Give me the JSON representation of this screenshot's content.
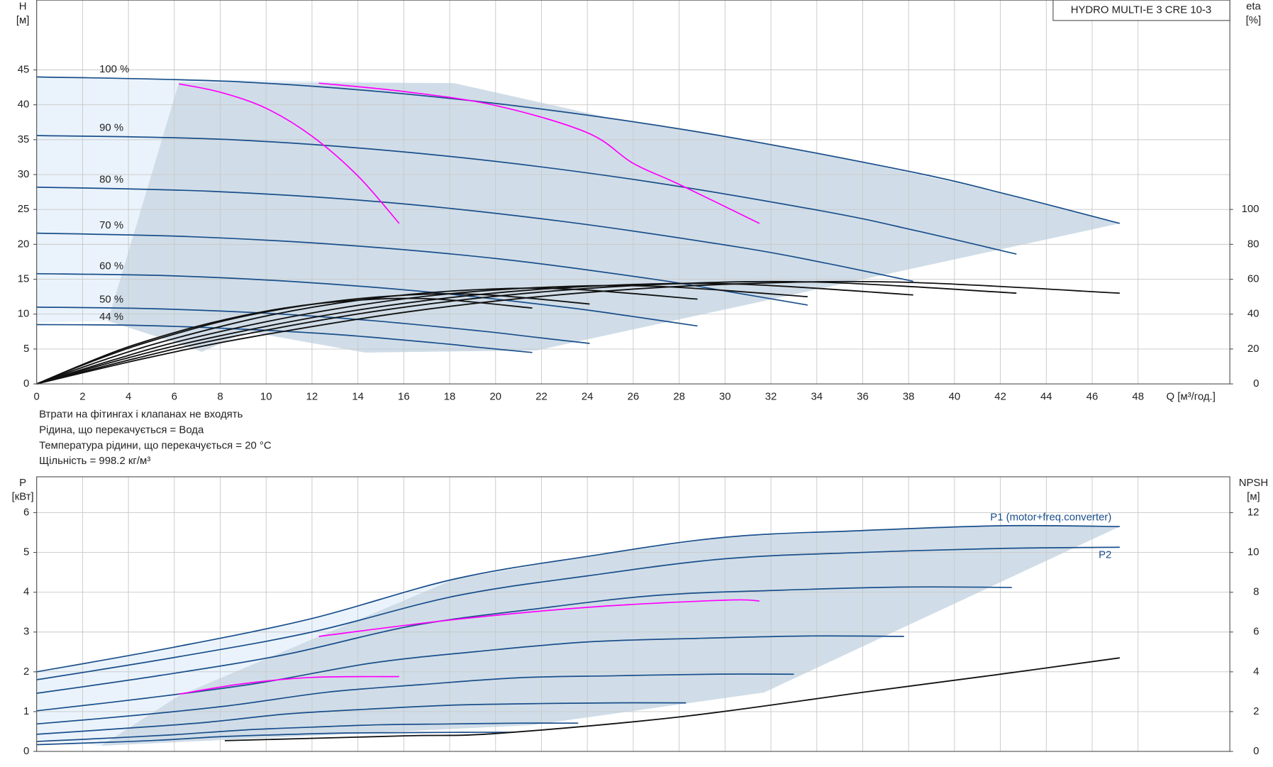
{
  "chart_data": [
    {
      "type": "line",
      "title": "HYDRO MULTI-E 3 CRE 10-3",
      "ylabel": "H",
      "yunit": "[м]",
      "y2label": "eta",
      "y2unit": "[%]",
      "xlabel": "Q [м³/год.]",
      "notes": [
        "Втрати на фітингах і клапанах не входять",
        "Рідина, що перекачується = Вода",
        "Температура рідини, що перекачується = 20 °C",
        "Щільність = 998.2 кг/м³"
      ],
      "xlim": [
        0,
        52
      ],
      "xticks": [
        0,
        2,
        4,
        6,
        8,
        10,
        12,
        14,
        16,
        18,
        20,
        22,
        24,
        26,
        28,
        30,
        32,
        34,
        36,
        38,
        40,
        42,
        44,
        46,
        48
      ],
      "ylim": [
        0,
        55
      ],
      "yticks": [
        0,
        5,
        10,
        15,
        20,
        25,
        30,
        35,
        40,
        45
      ],
      "y2lim": [
        0,
        220
      ],
      "y2ticks": [
        0,
        20,
        40,
        60,
        80,
        100
      ],
      "grid": true,
      "areas": [
        {
          "color": "#eaf3fb",
          "x": [
            0,
            18.2,
            11.4,
            3.1,
            0
          ],
          "values": [
            44,
            43.1,
            35.5,
            9.0,
            8.8
          ]
        },
        {
          "color": "#d0dde8",
          "x": [
            6.2,
            18.2,
            25,
            30,
            35,
            40,
            45,
            47.2,
            21.8,
            14.3,
            9.2,
            7.2,
            6.0,
            3.1
          ],
          "values": [
            43.2,
            43.1,
            38.1,
            35.5,
            32.4,
            28.9,
            24.9,
            23.0,
            4.8,
            4.5,
            7.5,
            4.6,
            6.0,
            9.0
          ]
        }
      ],
      "series": [
        {
          "name": "100 %",
          "color": "#1a4f8b",
          "x": [
            0,
            9.4,
            18.9,
            28.3,
            37.8,
            42.5,
            47.2
          ],
          "values": [
            44,
            43.2,
            40.6,
            36.4,
            30.6,
            27.0,
            23.0
          ]
        },
        {
          "name": "90 %",
          "color": "#1a4f8b",
          "x": [
            0,
            8.5,
            17.1,
            25.6,
            34.2,
            38.4,
            42.7
          ],
          "values": [
            35.6,
            35.0,
            32.9,
            29.5,
            24.8,
            21.9,
            18.6
          ]
        },
        {
          "name": "80 %",
          "color": "#1a4f8b",
          "x": [
            0,
            7.6,
            15.3,
            22.9,
            30.6,
            34.4,
            38.2
          ],
          "values": [
            28.2,
            27.6,
            26.0,
            23.3,
            19.6,
            17.3,
            14.7
          ]
        },
        {
          "name": "70 %",
          "color": "#1a4f8b",
          "x": [
            0,
            6.7,
            13.4,
            20.2,
            26.9,
            30.2,
            33.6
          ],
          "values": [
            21.6,
            21.1,
            19.9,
            17.9,
            15.0,
            13.2,
            11.3
          ]
        },
        {
          "name": "60 %",
          "color": "#1a4f8b",
          "x": [
            0,
            5.8,
            11.5,
            17.3,
            23.0,
            25.9,
            28.8
          ],
          "values": [
            15.8,
            15.5,
            14.6,
            13.1,
            11.0,
            9.7,
            8.3
          ]
        },
        {
          "name": "50 %",
          "color": "#1a4f8b",
          "x": [
            0,
            4.8,
            9.6,
            14.5,
            19.3,
            21.7,
            24.1
          ],
          "values": [
            11.0,
            10.8,
            10.2,
            9.1,
            7.6,
            6.7,
            5.8
          ]
        },
        {
          "name": "44 %",
          "color": "#1a4f8b",
          "x": [
            0,
            4.3,
            8.6,
            13.0,
            17.3,
            19.4,
            21.6
          ],
          "values": [
            8.5,
            8.4,
            7.9,
            7.1,
            5.9,
            5.2,
            4.5
          ]
        },
        {
          "color": "#ff00ff",
          "x": [
            6.2,
            8,
            10,
            12,
            14,
            15.8
          ],
          "values": [
            43.0,
            41.8,
            39.5,
            35.5,
            29.8,
            23.0
          ]
        },
        {
          "color": "#ff00ff",
          "x": [
            12.3,
            16,
            20,
            24,
            26,
            28,
            31.5
          ],
          "values": [
            43.1,
            41.9,
            39.9,
            36.0,
            31.6,
            28.6,
            23.0
          ]
        },
        {
          "color": "#111111",
          "axis": "y2",
          "x": [
            0,
            4.7,
            9.4,
            16.5,
            23.6,
            30.7,
            37.8,
            47.2
          ],
          "values": [
            0,
            14.6,
            27.0,
            41.9,
            52.0,
            57.4,
            58.3,
            52.0
          ]
        },
        {
          "color": "#111111",
          "axis": "y2",
          "x": [
            0,
            4.3,
            8.5,
            14.9,
            21.4,
            27.8,
            34.2,
            42.7
          ],
          "values": [
            0,
            14.6,
            27.0,
            41.9,
            52.0,
            57.4,
            58.3,
            52.0
          ]
        },
        {
          "color": "#111111",
          "axis": "y2",
          "x": [
            0,
            3.8,
            7.6,
            13.4,
            19.1,
            24.8,
            30.6,
            38.2
          ],
          "values": [
            0,
            14.3,
            26.5,
            41.1,
            51.0,
            56.4,
            57.2,
            51.0
          ]
        },
        {
          "color": "#111111",
          "axis": "y2",
          "x": [
            0,
            3.4,
            6.7,
            11.8,
            16.8,
            21.8,
            26.9,
            33.6
          ],
          "values": [
            0,
            14.0,
            26.0,
            40.2,
            50.0,
            55.2,
            56.0,
            50.0
          ]
        },
        {
          "color": "#111111",
          "axis": "y2",
          "x": [
            0,
            2.9,
            5.8,
            10.1,
            14.4,
            18.7,
            23.0,
            28.8
          ],
          "values": [
            0,
            13.6,
            25.3,
            39.2,
            48.6,
            53.7,
            54.5,
            48.6
          ]
        },
        {
          "color": "#111111",
          "axis": "y2",
          "x": [
            0,
            2.4,
            4.8,
            8.4,
            12.1,
            15.7,
            19.3,
            24.1
          ],
          "values": [
            0,
            12.8,
            23.8,
            36.9,
            45.8,
            50.6,
            51.3,
            45.8
          ]
        },
        {
          "color": "#111111",
          "axis": "y2",
          "x": [
            0,
            2.2,
            4.3,
            7.6,
            10.8,
            14.0,
            17.3,
            21.6
          ],
          "values": [
            0,
            12.2,
            22.6,
            35.0,
            43.5,
            48.0,
            48.7,
            43.5
          ]
        }
      ]
    },
    {
      "type": "line",
      "ylabel": "P",
      "yunit": "[кВт]",
      "y2label": "NPSH",
      "y2unit": "[м]",
      "xlim": [
        0,
        52
      ],
      "ylim": [
        0,
        6.9
      ],
      "yticks": [
        0,
        1,
        2,
        3,
        4,
        5,
        6
      ],
      "y2lim": [
        0,
        13.8
      ],
      "y2ticks": [
        0,
        2,
        4,
        6,
        8,
        10,
        12
      ],
      "grid": true,
      "areas": [
        {
          "color": "#eaf3fb",
          "x": [
            0,
            6,
            12,
            18.2,
            6.2,
            2.8,
            0
          ],
          "values": [
            2.0,
            2.62,
            3.34,
            4.33,
            1.4,
            0.14,
            0.3
          ]
        },
        {
          "color": "#d0dde8",
          "x": [
            18.2,
            24,
            30,
            36,
            42,
            47.2,
            31.7,
            21.6,
            2.8,
            6.2
          ],
          "values": [
            4.33,
            4.9,
            5.38,
            5.55,
            5.67,
            5.65,
            1.48,
            0.66,
            0.14,
            1.4
          ]
        }
      ],
      "series": [
        {
          "name": "P1 (motor+freq.converter)",
          "color": "#1a4f8b",
          "x": [
            0,
            6,
            12,
            18.2,
            24,
            30,
            36,
            42,
            47.2
          ],
          "values": [
            2.0,
            2.62,
            3.34,
            4.33,
            4.9,
            5.38,
            5.55,
            5.67,
            5.65
          ]
        },
        {
          "name": "P2",
          "color": "#1a4f8b",
          "x": [
            0,
            6,
            12,
            18.2,
            24,
            30,
            36,
            42,
            47.2
          ],
          "values": [
            1.8,
            2.36,
            3.0,
            3.9,
            4.41,
            4.84,
            5.0,
            5.1,
            5.13
          ]
        },
        {
          "color": "#1a4f8b",
          "x": [
            0,
            5.4,
            10.8,
            16.4,
            21.6,
            27,
            32.4,
            37.8,
            42.5
          ],
          "values": [
            1.46,
            1.91,
            2.43,
            3.16,
            3.57,
            3.92,
            4.05,
            4.13,
            4.12
          ]
        },
        {
          "color": "#1a4f8b",
          "x": [
            0,
            4.8,
            9.6,
            14.6,
            19.2,
            24,
            28.8,
            33.6,
            37.8
          ],
          "values": [
            1.02,
            1.34,
            1.71,
            2.22,
            2.51,
            2.75,
            2.84,
            2.9,
            2.89
          ]
        },
        {
          "color": "#1a4f8b",
          "x": [
            0,
            4.2,
            8.4,
            12.7,
            16.8,
            21,
            25.2,
            29.4,
            33.0
          ],
          "values": [
            0.69,
            0.9,
            1.15,
            1.49,
            1.68,
            1.85,
            1.9,
            1.94,
            1.94
          ]
        },
        {
          "color": "#1a4f8b",
          "x": [
            0,
            3.6,
            7.2,
            10.9,
            14.4,
            18,
            21.6,
            25.2,
            28.3
          ],
          "values": [
            0.43,
            0.57,
            0.72,
            0.94,
            1.06,
            1.16,
            1.2,
            1.22,
            1.22
          ]
        },
        {
          "color": "#1a4f8b",
          "x": [
            0,
            3,
            6,
            9.1,
            12,
            15,
            18,
            21,
            23.6
          ],
          "values": [
            0.25,
            0.33,
            0.42,
            0.54,
            0.61,
            0.67,
            0.69,
            0.71,
            0.71
          ]
        },
        {
          "color": "#1a4f8b",
          "x": [
            0,
            2.6,
            5.3,
            8,
            10.6,
            13.2,
            15.8,
            18.5,
            20.8
          ],
          "values": [
            0.17,
            0.22,
            0.28,
            0.37,
            0.42,
            0.46,
            0.47,
            0.48,
            0.48
          ]
        },
        {
          "color": "#ff00ff",
          "x": [
            6.2,
            9,
            12,
            15.8
          ],
          "values": [
            1.44,
            1.7,
            1.86,
            1.88
          ]
        },
        {
          "color": "#ff00ff",
          "x": [
            12.3,
            18,
            24,
            30,
            31.5
          ],
          "values": [
            2.89,
            3.3,
            3.62,
            3.8,
            3.78
          ]
        },
        {
          "color": "#111111",
          "axis": "y2",
          "x": [
            8.2,
            16,
            20,
            28,
            36,
            42,
            47.2
          ],
          "values": [
            0.54,
            0.78,
            0.9,
            1.73,
            2.97,
            3.88,
            4.7
          ]
        }
      ]
    }
  ]
}
